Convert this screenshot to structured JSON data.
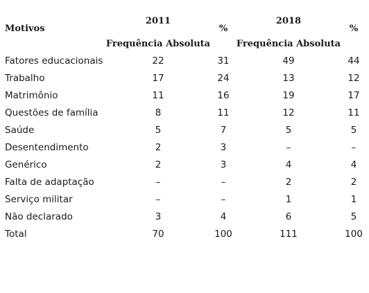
{
  "header": {
    "motivos": "Motivos",
    "year_2011": "2011",
    "year_2018": "2018",
    "pct_2011": "%",
    "pct_2018": "%",
    "freq_2011": "Frequência Absoluta",
    "freq_2018": "Frequência Absoluta"
  },
  "rows": [
    {
      "label": "Fatores educacionais",
      "v2011": "22",
      "p2011": "31",
      "v2018": "49",
      "p2018": "44"
    },
    {
      "label": "Trabalho",
      "v2011": "17",
      "p2011": "24",
      "v2018": "13",
      "p2018": "12"
    },
    {
      "label": "Matrimônio",
      "v2011": "11",
      "p2011": "16",
      "v2018": "19",
      "p2018": "17"
    },
    {
      "label": "Questões de família",
      "v2011": "8",
      "p2011": "11",
      "v2018": "12",
      "p2018": "11"
    },
    {
      "label": "Saúde",
      "v2011": "5",
      "p2011": "7",
      "v2018": "5",
      "p2018": "5"
    },
    {
      "label": "Desentendimento",
      "v2011": "2",
      "p2011": "3",
      "v2018": "–",
      "p2018": "–"
    },
    {
      "label": "Genérico",
      "v2011": "2",
      "p2011": "3",
      "v2018": "4",
      "p2018": "4"
    },
    {
      "label": "Falta de adaptação",
      "v2011": "–",
      "p2011": "–",
      "v2018": "2",
      "p2018": "2"
    },
    {
      "label": "Serviço militar",
      "v2011": "–",
      "p2011": "–",
      "v2018": "1",
      "p2018": "1"
    },
    {
      "label": "Não declarado",
      "v2011": "3",
      "p2011": "4",
      "v2018": "6",
      "p2018": "5"
    },
    {
      "label": "Total",
      "v2011": "70",
      "p2011": "100",
      "v2018": "111",
      "p2018": "100"
    }
  ]
}
